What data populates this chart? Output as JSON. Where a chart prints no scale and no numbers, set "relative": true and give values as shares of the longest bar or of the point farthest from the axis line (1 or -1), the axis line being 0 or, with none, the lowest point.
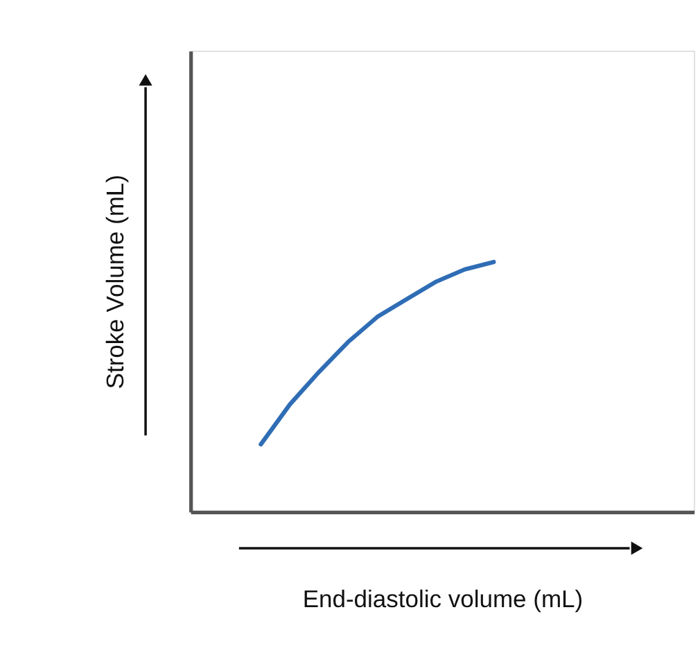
{
  "chart_data": {
    "type": "line",
    "xlabel": "End-diastolic volume (mL)",
    "ylabel": "Stroke Volume (mL)",
    "categories": [
      null,
      null,
      null,
      null,
      null,
      null,
      null,
      null,
      null,
      null,
      null,
      null,
      null,
      null,
      null,
      null,
      null
    ],
    "relative": true,
    "tick_labels": false,
    "series": [
      {
        "color": "#2f6db5",
        "values": [
          null,
          null,
          0.27,
          0.43,
          0.56,
          0.68,
          0.78,
          0.85,
          0.92,
          0.97,
          1,
          null,
          null,
          null,
          null,
          null,
          null
        ]
      }
    ]
  }
}
